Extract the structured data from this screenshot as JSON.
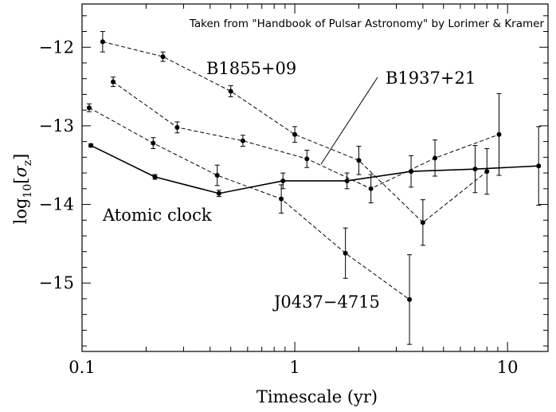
{
  "chart_data": {
    "type": "line",
    "annotation_credit": "Taken from \"Handbook of Pulsar Astronomy\" by Lorimer & Kramer",
    "xlabel": "Timescale (yr)",
    "ylabel_main": "log",
    "ylabel_sub": "10",
    "ylabel_bracket_open": "[",
    "ylabel_sigma": "σ",
    "ylabel_sigma_sub": "z",
    "ylabel_bracket_close": "]",
    "xscale": "log",
    "xlim": [
      0.1,
      15.5
    ],
    "ylim": [
      -15.87,
      -11.45
    ],
    "xticks": [
      {
        "value": 0.1,
        "label": "0.1"
      },
      {
        "value": 1,
        "label": "1"
      },
      {
        "value": 10,
        "label": "10"
      }
    ],
    "yticks": [
      {
        "value": -12,
        "label": "−12"
      },
      {
        "value": -13,
        "label": "−13"
      },
      {
        "value": -14,
        "label": "−14"
      },
      {
        "value": -15,
        "label": "−15"
      }
    ],
    "grid": false,
    "series": [
      {
        "name": "B1855+09",
        "style": "dashed",
        "points": [
          {
            "x": 0.125,
            "y": -11.93,
            "err": 0.13
          },
          {
            "x": 0.24,
            "y": -12.12,
            "err": 0.06
          },
          {
            "x": 0.5,
            "y": -12.56,
            "err": 0.07
          },
          {
            "x": 1.0,
            "y": -13.11,
            "err": 0.1
          },
          {
            "x": 2.0,
            "y": -13.44,
            "err": 0.18
          },
          {
            "x": 4.0,
            "y": -14.23,
            "err": 0.29
          },
          {
            "x": 8.0,
            "y": -13.58,
            "err": 0.29
          }
        ]
      },
      {
        "name": "B1937+21",
        "style": "dashed",
        "points": [
          {
            "x": 0.14,
            "y": -12.44,
            "err": 0.06
          },
          {
            "x": 0.28,
            "y": -13.02,
            "err": 0.07
          },
          {
            "x": 0.57,
            "y": -13.19,
            "err": 0.07
          },
          {
            "x": 1.14,
            "y": -13.42,
            "err": 0.11
          },
          {
            "x": 2.28,
            "y": -13.8,
            "err": 0.18
          },
          {
            "x": 4.56,
            "y": -13.41,
            "err": 0.23
          },
          {
            "x": 9.12,
            "y": -13.11,
            "err": 0.52
          }
        ]
      },
      {
        "name": "J0437−4715",
        "style": "dashed",
        "points": [
          {
            "x": 0.108,
            "y": -12.77,
            "err": 0.05
          },
          {
            "x": 0.216,
            "y": -13.22,
            "err": 0.07
          },
          {
            "x": 0.432,
            "y": -13.63,
            "err": 0.13
          },
          {
            "x": 0.864,
            "y": -13.93,
            "err": 0.18
          },
          {
            "x": 1.73,
            "y": -14.62,
            "err": 0.32
          },
          {
            "x": 3.46,
            "y": -15.21,
            "err": 0.57
          }
        ]
      },
      {
        "name": "Atomic clock",
        "style": "solid",
        "points": [
          {
            "x": 0.11,
            "y": -13.25,
            "err": 0.02
          },
          {
            "x": 0.22,
            "y": -13.65,
            "err": 0.03
          },
          {
            "x": 0.44,
            "y": -13.86,
            "err": 0.04
          },
          {
            "x": 0.88,
            "y": -13.7,
            "err": 0.1
          },
          {
            "x": 1.76,
            "y": -13.7,
            "err": 0.1
          },
          {
            "x": 3.52,
            "y": -13.58,
            "err": 0.2
          },
          {
            "x": 7.04,
            "y": -13.55,
            "err": 0.3
          },
          {
            "x": 14.0,
            "y": -13.51,
            "err": 0.5
          }
        ]
      }
    ]
  }
}
